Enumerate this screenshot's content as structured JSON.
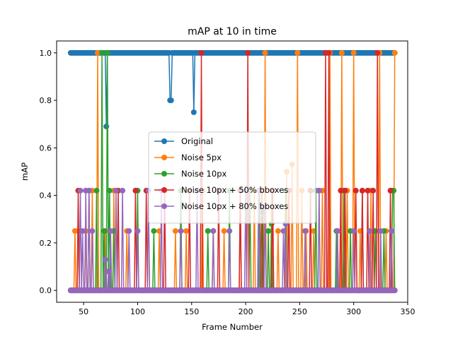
{
  "chart_data": {
    "type": "line",
    "title": "mAP at 10 in time",
    "xlabel": "Frame Number",
    "ylabel": "mAP",
    "xlim": [
      25,
      350
    ],
    "ylim": [
      -0.05,
      1.05
    ],
    "xticks": [
      50,
      100,
      150,
      200,
      250,
      300,
      350
    ],
    "yticks": [
      0.0,
      0.2,
      0.4,
      0.6,
      0.8,
      1.0
    ],
    "xtick_labels": [
      "50",
      "100",
      "150",
      "200",
      "250",
      "300",
      "350"
    ],
    "ytick_labels": [
      "0.0",
      "0.2",
      "0.4",
      "0.6",
      "0.8",
      "1.0"
    ],
    "grid": false,
    "legend_position": "center",
    "x": {
      "start": 38,
      "end": 338,
      "step": 1
    },
    "series": [
      {
        "name": "Original",
        "color": "#1f77b4",
        "default": 1.0,
        "points": [
          [
            71,
            0.69
          ],
          [
            130,
            0.8
          ],
          [
            131,
            0.8
          ],
          [
            152,
            0.75
          ]
        ]
      },
      {
        "name": "Noise 5px",
        "color": "#ff7f0e",
        "default": 0.0,
        "points": [
          [
            42,
            0.25
          ],
          [
            45,
            0.25
          ],
          [
            52,
            0.25
          ],
          [
            58,
            0.42
          ],
          [
            63,
            1.0
          ],
          [
            70,
            0.25
          ],
          [
            78,
            0.42
          ],
          [
            90,
            0.25
          ],
          [
            110,
            0.42
          ],
          [
            120,
            0.25
          ],
          [
            135,
            0.25
          ],
          [
            145,
            0.25
          ],
          [
            160,
            0.42
          ],
          [
            170,
            0.25
          ],
          [
            180,
            0.25
          ],
          [
            195,
            0.42
          ],
          [
            208,
            0.42
          ],
          [
            218,
            1.0
          ],
          [
            224,
            0.42
          ],
          [
            230,
            0.25
          ],
          [
            238,
            0.5
          ],
          [
            243,
            0.53
          ],
          [
            248,
            1.0
          ],
          [
            252,
            0.42
          ],
          [
            256,
            0.25
          ],
          [
            263,
            0.25
          ],
          [
            271,
            0.42
          ],
          [
            278,
            1.0
          ],
          [
            285,
            0.25
          ],
          [
            289,
            1.0
          ],
          [
            294,
            0.42
          ],
          [
            300,
            1.0
          ],
          [
            306,
            0.25
          ],
          [
            316,
            0.42
          ],
          [
            324,
            1.0
          ],
          [
            330,
            0.25
          ],
          [
            338,
            1.0
          ]
        ]
      },
      {
        "name": "Noise 10px",
        "color": "#2ca02c",
        "default": 0.0,
        "points": [
          [
            62,
            0.42
          ],
          [
            67,
            1.0
          ],
          [
            69,
            0.25
          ],
          [
            72,
            1.0
          ],
          [
            74,
            0.42
          ],
          [
            78,
            0.25
          ],
          [
            100,
            0.42
          ],
          [
            115,
            0.25
          ],
          [
            140,
            0.42
          ],
          [
            165,
            0.25
          ],
          [
            185,
            0.42
          ],
          [
            204,
            0.42
          ],
          [
            213,
            0.42
          ],
          [
            216,
            0.33
          ],
          [
            221,
            0.25
          ],
          [
            224,
            0.28
          ],
          [
            237,
            0.42
          ],
          [
            265,
            0.42
          ],
          [
            284,
            0.25
          ],
          [
            291,
            0.42
          ],
          [
            297,
            0.25
          ],
          [
            308,
            0.42
          ],
          [
            320,
            0.25
          ],
          [
            328,
            0.25
          ],
          [
            336,
            0.42
          ],
          [
            337,
            0.42
          ]
        ]
      },
      {
        "name": "Noise 10px + 50% bboxes",
        "color": "#d62728",
        "default": 0.0,
        "points": [
          [
            45,
            0.42
          ],
          [
            55,
            0.42
          ],
          [
            82,
            0.42
          ],
          [
            98,
            0.42
          ],
          [
            108,
            0.42
          ],
          [
            125,
            0.42
          ],
          [
            148,
            0.42
          ],
          [
            159,
            1.0
          ],
          [
            175,
            0.42
          ],
          [
            195,
            0.42
          ],
          [
            202,
            1.0
          ],
          [
            215,
            0.42
          ],
          [
            225,
            0.42
          ],
          [
            240,
            0.42
          ],
          [
            260,
            0.42
          ],
          [
            274,
            1.0
          ],
          [
            277,
            1.0
          ],
          [
            288,
            0.42
          ],
          [
            292,
            0.42
          ],
          [
            302,
            0.42
          ],
          [
            308,
            0.42
          ],
          [
            313,
            0.42
          ],
          [
            318,
            0.42
          ],
          [
            322,
            1.0
          ],
          [
            334,
            0.42
          ]
        ]
      },
      {
        "name": "Noise 10px + 80% bboxes",
        "color": "#9467bd",
        "default": 0.0,
        "points": [
          [
            47,
            0.42
          ],
          [
            49,
            0.25
          ],
          [
            52,
            0.42
          ],
          [
            55,
            0.42
          ],
          [
            58,
            0.25
          ],
          [
            70,
            0.13
          ],
          [
            73,
            0.08
          ],
          [
            75,
            0.25
          ],
          [
            80,
            0.42
          ],
          [
            86,
            0.42
          ],
          [
            92,
            0.25
          ],
          [
            100,
            0.25
          ],
          [
            110,
            0.42
          ],
          [
            122,
            0.42
          ],
          [
            140,
            0.25
          ],
          [
            155,
            0.42
          ],
          [
            170,
            0.25
          ],
          [
            185,
            0.25
          ],
          [
            200,
            0.42
          ],
          [
            212,
            0.42
          ],
          [
            218,
            0.35
          ],
          [
            235,
            0.25
          ],
          [
            237,
            0.28
          ],
          [
            255,
            0.25
          ],
          [
            268,
            0.42
          ],
          [
            285,
            0.25
          ],
          [
            300,
            0.25
          ],
          [
            315,
            0.25
          ],
          [
            325,
            0.25
          ],
          [
            335,
            0.25
          ]
        ]
      }
    ]
  }
}
